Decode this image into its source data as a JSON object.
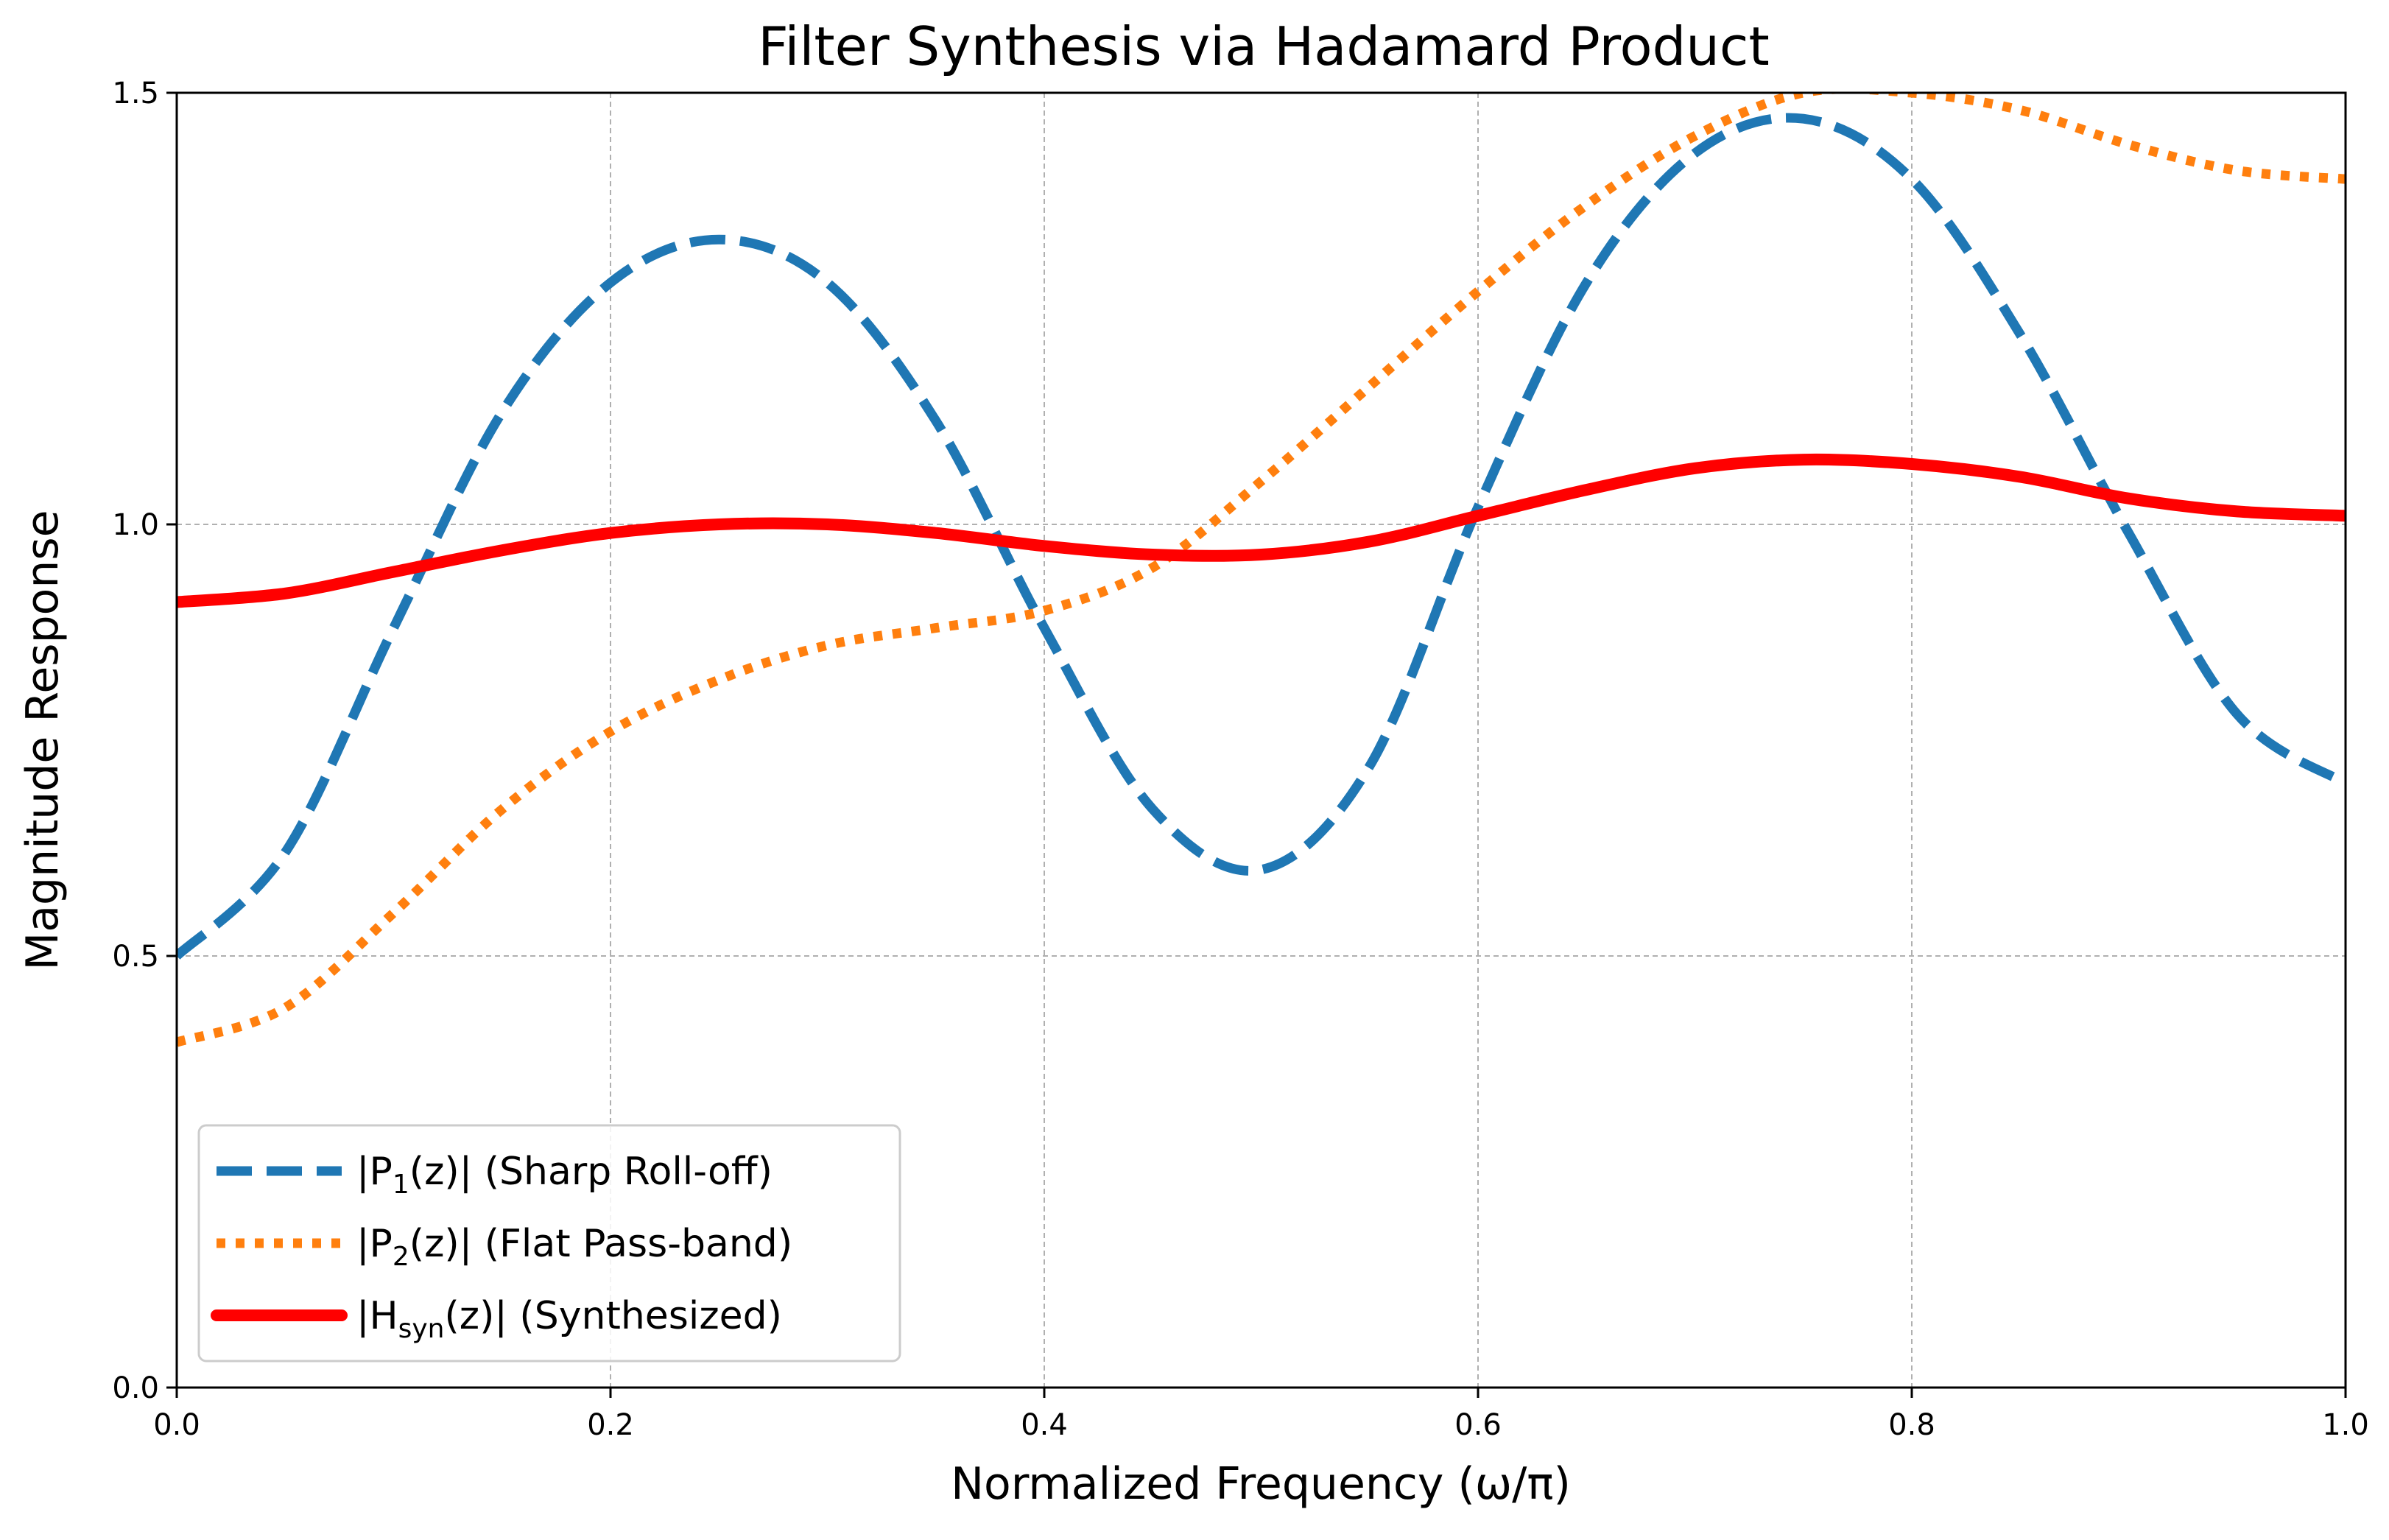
{
  "chart_data": {
    "type": "line",
    "title": "Filter Synthesis via Hadamard Product",
    "xlabel": "Normalized Frequency (ω/π)",
    "ylabel": "Magnitude Response",
    "xlim": [
      0.0,
      1.0
    ],
    "ylim": [
      0.0,
      1.5
    ],
    "grid": true,
    "legend_loc": "lower-left",
    "x_ticks": [
      0.0,
      0.2,
      0.4,
      0.6,
      0.8,
      1.0
    ],
    "x_tick_labels": [
      "0.0",
      "0.2",
      "0.4",
      "0.6",
      "0.8",
      "1.0"
    ],
    "y_ticks": [
      0.0,
      0.5,
      1.0,
      1.5
    ],
    "y_tick_labels": [
      "0.0",
      "0.5",
      "1.0",
      "1.5"
    ],
    "x": [
      0.0,
      0.05,
      0.1,
      0.15,
      0.2,
      0.25,
      0.3,
      0.35,
      0.4,
      0.45,
      0.5,
      0.55,
      0.6,
      0.65,
      0.7,
      0.75,
      0.8,
      0.85,
      0.9,
      0.95,
      1.0
    ],
    "series": [
      {
        "name": "|P1(z)| (Sharp Roll-off)",
        "legend_main": "|P",
        "legend_sub": "1",
        "legend_rest": "(z)| (Sharp Roll-off)",
        "style": "dashed",
        "color": "#1f77b4",
        "values": [
          0.5,
          0.62,
          0.88,
          1.13,
          1.28,
          1.33,
          1.28,
          1.12,
          0.88,
          0.67,
          0.6,
          0.72,
          1.02,
          1.28,
          1.43,
          1.47,
          1.4,
          1.22,
          0.99,
          0.78,
          0.7
        ]
      },
      {
        "name": "|P2(z)| (Flat Pass-band)",
        "legend_main": "|P",
        "legend_sub": "2",
        "legend_rest": "(z)| (Flat Pass-band)",
        "style": "dotted",
        "color": "#ff7f0e",
        "values": [
          0.4,
          0.44,
          0.55,
          0.67,
          0.76,
          0.82,
          0.86,
          0.88,
          0.9,
          0.95,
          1.05,
          1.16,
          1.27,
          1.37,
          1.45,
          1.5,
          1.5,
          1.48,
          1.44,
          1.41,
          1.4
        ]
      },
      {
        "name": "|Hsyn(z)| (Synthesized)",
        "legend_main": "|H",
        "legend_sub": "syn",
        "legend_rest": "(z)| (Synthesized)",
        "style": "solid",
        "color": "#ff0000",
        "values": [
          0.91,
          0.92,
          0.945,
          0.97,
          0.99,
          1.0,
          1.0,
          0.99,
          0.975,
          0.965,
          0.965,
          0.98,
          1.01,
          1.04,
          1.065,
          1.075,
          1.07,
          1.055,
          1.03,
          1.015,
          1.01
        ]
      }
    ]
  }
}
